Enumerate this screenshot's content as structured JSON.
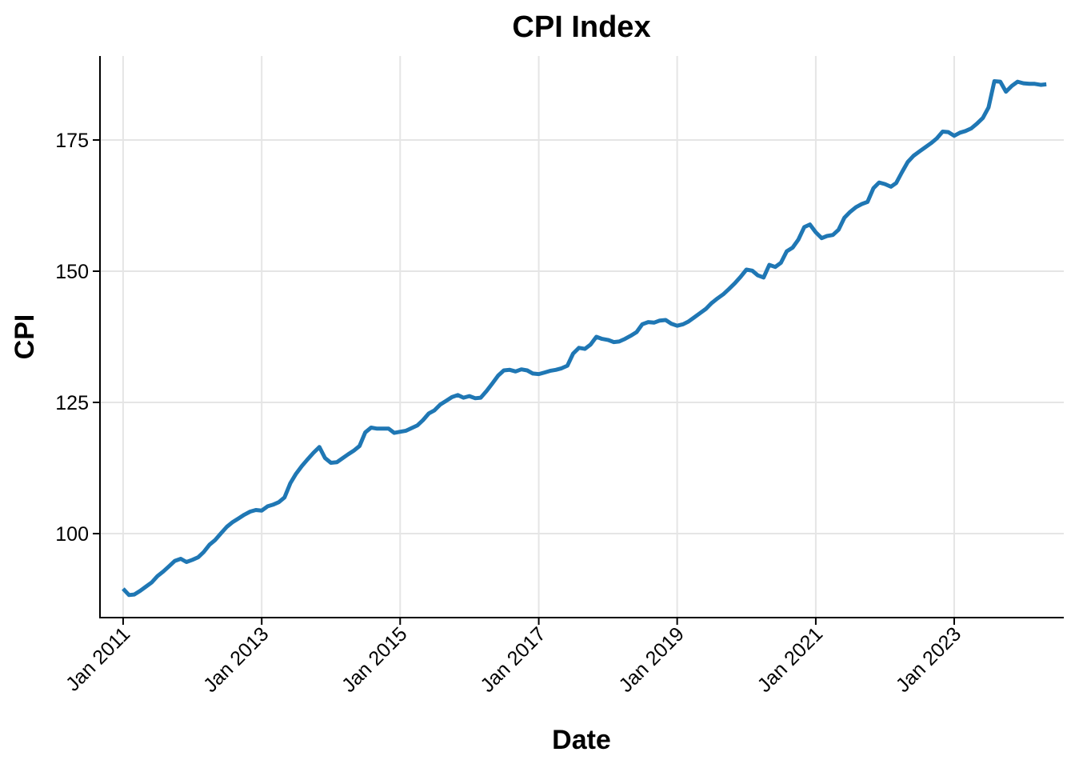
{
  "chart_data": {
    "type": "line",
    "title": "CPI Index",
    "xlabel": "Date",
    "ylabel": "CPI",
    "x_range": [
      "2010-09-01",
      "2024-08-01"
    ],
    "ylim": [
      84,
      191
    ],
    "y_ticks": [
      100,
      125,
      150,
      175
    ],
    "x_ticks": [
      {
        "date": "2011-01-01",
        "label": "Jan 2011"
      },
      {
        "date": "2013-01-01",
        "label": "Jan 2013"
      },
      {
        "date": "2015-01-01",
        "label": "Jan 2015"
      },
      {
        "date": "2017-01-01",
        "label": "Jan 2017"
      },
      {
        "date": "2019-01-01",
        "label": "Jan 2019"
      },
      {
        "date": "2021-01-01",
        "label": "Jan 2021"
      },
      {
        "date": "2023-01-01",
        "label": "Jan 2023"
      }
    ],
    "grid": true,
    "line_color": "#1f77b4",
    "series": [
      {
        "x": [
          "2011-01",
          "2011-02",
          "2011-03",
          "2011-04",
          "2011-05",
          "2011-06",
          "2011-07",
          "2011-08",
          "2011-09",
          "2011-10",
          "2011-11",
          "2011-12",
          "2012-01",
          "2012-02",
          "2012-03",
          "2012-04",
          "2012-05",
          "2012-06",
          "2012-07",
          "2012-08",
          "2012-09",
          "2012-10",
          "2012-11",
          "2012-12",
          "2013-01",
          "2013-02",
          "2013-03",
          "2013-04",
          "2013-05",
          "2013-06",
          "2013-07",
          "2013-08",
          "2013-09",
          "2013-10",
          "2013-11",
          "2013-12",
          "2014-01",
          "2014-02",
          "2014-03",
          "2014-04",
          "2014-05",
          "2014-06",
          "2014-07",
          "2014-08",
          "2014-09",
          "2014-10",
          "2014-11",
          "2014-12",
          "2015-01",
          "2015-02",
          "2015-03",
          "2015-04",
          "2015-05",
          "2015-06",
          "2015-07",
          "2015-08",
          "2015-09",
          "2015-10",
          "2015-11",
          "2015-12",
          "2016-01",
          "2016-02",
          "2016-03",
          "2016-04",
          "2016-05",
          "2016-06",
          "2016-07",
          "2016-08",
          "2016-09",
          "2016-10",
          "2016-11",
          "2016-12",
          "2017-01",
          "2017-02",
          "2017-03",
          "2017-04",
          "2017-05",
          "2017-06",
          "2017-07",
          "2017-08",
          "2017-09",
          "2017-10",
          "2017-11",
          "2017-12",
          "2018-01",
          "2018-02",
          "2018-03",
          "2018-04",
          "2018-05",
          "2018-06",
          "2018-07",
          "2018-08",
          "2018-09",
          "2018-10",
          "2018-11",
          "2018-12",
          "2019-01",
          "2019-02",
          "2019-03",
          "2019-04",
          "2019-05",
          "2019-06",
          "2019-07",
          "2019-08",
          "2019-09",
          "2019-10",
          "2019-11",
          "2019-12",
          "2020-01",
          "2020-02",
          "2020-03",
          "2020-04",
          "2020-05",
          "2020-06",
          "2020-07",
          "2020-08",
          "2020-09",
          "2020-10",
          "2020-11",
          "2020-12",
          "2021-01",
          "2021-02",
          "2021-03",
          "2021-04",
          "2021-05",
          "2021-06",
          "2021-07",
          "2021-08",
          "2021-09",
          "2021-10",
          "2021-11",
          "2021-12",
          "2022-01",
          "2022-02",
          "2022-03",
          "2022-04",
          "2022-05",
          "2022-06",
          "2022-07",
          "2022-08",
          "2022-09",
          "2022-10",
          "2022-11",
          "2022-12",
          "2023-01",
          "2023-02",
          "2023-03",
          "2023-04",
          "2023-05",
          "2023-06",
          "2023-07",
          "2023-08",
          "2023-09",
          "2023-10",
          "2023-11",
          "2023-12",
          "2024-01",
          "2024-02",
          "2024-03",
          "2024-04",
          "2024-05"
        ],
        "y": [
          89.5,
          88.3,
          88.4,
          89.1,
          89.9,
          90.7,
          91.9,
          92.8,
          93.8,
          94.8,
          95.2,
          94.6,
          95.0,
          95.5,
          96.5,
          97.9,
          98.8,
          100.1,
          101.3,
          102.2,
          102.9,
          103.6,
          104.2,
          104.5,
          104.4,
          105.2,
          105.5,
          106.0,
          106.9,
          109.6,
          111.4,
          112.9,
          114.2,
          115.4,
          116.5,
          114.4,
          113.5,
          113.6,
          114.3,
          115.1,
          115.8,
          116.7,
          119.3,
          120.2,
          120.0,
          120.0,
          120.0,
          119.2,
          119.4,
          119.6,
          120.1,
          120.6,
          121.6,
          122.9,
          123.5,
          124.6,
          125.3,
          126.0,
          126.4,
          125.9,
          126.2,
          125.8,
          125.9,
          127.2,
          128.6,
          130.1,
          131.1,
          131.2,
          130.9,
          131.3,
          131.1,
          130.5,
          130.4,
          130.7,
          131.0,
          131.2,
          131.5,
          132.0,
          134.3,
          135.4,
          135.2,
          136.0,
          137.5,
          137.1,
          136.9,
          136.5,
          136.6,
          137.1,
          137.7,
          138.4,
          139.9,
          140.3,
          140.2,
          140.6,
          140.7,
          140.0,
          139.6,
          139.9,
          140.4,
          141.2,
          142.0,
          142.8,
          143.9,
          144.8,
          145.6,
          146.6,
          147.7,
          148.9,
          150.3,
          150.1,
          149.2,
          148.8,
          151.2,
          150.8,
          151.6,
          153.8,
          154.5,
          156.0,
          158.4,
          158.9,
          157.4,
          156.3,
          156.7,
          156.9,
          157.9,
          160.2,
          161.3,
          162.2,
          162.8,
          163.2,
          165.8,
          166.9,
          166.6,
          166.1,
          166.8,
          168.9,
          170.8,
          172.0,
          172.8,
          173.6,
          174.4,
          175.3,
          176.6,
          176.5,
          175.8,
          176.4,
          176.7,
          177.2,
          178.1,
          179.2,
          181.2,
          186.2,
          186.1,
          184.2,
          185.3,
          186.1,
          185.8,
          185.7,
          185.7,
          185.5,
          185.6
        ]
      }
    ]
  }
}
